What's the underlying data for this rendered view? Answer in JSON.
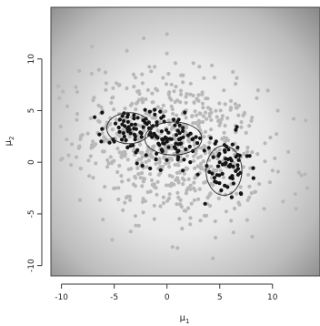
{
  "chart_data": {
    "type": "scatter",
    "title": "",
    "xlabel": "μ",
    "xlabel_sub": "1",
    "ylabel": "μ",
    "ylabel_sub": "2",
    "xlim": [
      -11,
      14.5
    ],
    "ylim": [
      -11,
      15
    ],
    "xticks": [
      -10,
      -5,
      0,
      5,
      10
    ],
    "yticks": [
      -10,
      -5,
      0,
      5,
      10
    ],
    "xtick_labels": [
      "-10",
      "-5",
      "0",
      "5",
      "10"
    ],
    "ytick_labels": [
      "-10",
      "-5",
      "0",
      "5",
      "10"
    ],
    "grid": false,
    "background": "grayscale density shading (light center, dark edges)",
    "colors": {
      "prior_points": "#b8b8b8",
      "posterior_points": "#141414",
      "contours": "#2a2a2a"
    },
    "series": [
      {
        "label_text": "",
        "role": "light-gray-samples",
        "approx_count": 700,
        "distribution": {
          "center": [
            0.5,
            1.5
          ],
          "sd": [
            4.2,
            3.6
          ],
          "corr": -0.2
        },
        "sample_points": [
          [
            -10.2,
            6.2
          ],
          [
            -8.5,
            6.8
          ],
          [
            -7.0,
            6.0
          ],
          [
            -6.5,
            4.0
          ],
          [
            -5.8,
            7.0
          ],
          [
            -4.5,
            7.5
          ],
          [
            -3.0,
            8.2
          ],
          [
            -1.5,
            8.8
          ],
          [
            -7.1,
            11.2
          ],
          [
            -3.8,
            10.8
          ],
          [
            -2.2,
            12.0
          ],
          [
            0.0,
            12.4
          ],
          [
            0.8,
            9.6
          ],
          [
            2.5,
            9.6
          ],
          [
            4.5,
            8.2
          ],
          [
            3.0,
            6.5
          ],
          [
            6.5,
            7.6
          ],
          [
            8.5,
            6.2
          ],
          [
            10.5,
            5.0
          ],
          [
            12.0,
            4.2
          ],
          [
            8.0,
            4.0
          ],
          [
            9.8,
            2.4
          ],
          [
            11.5,
            1.0
          ],
          [
            10.0,
            -0.8
          ],
          [
            12.5,
            -1.0
          ],
          [
            13.3,
            -2.5
          ],
          [
            11.0,
            -3.8
          ],
          [
            9.2,
            -4.5
          ],
          [
            7.6,
            -5.6
          ],
          [
            6.3,
            -6.8
          ],
          [
            4.6,
            -7.3
          ],
          [
            2.2,
            -6.0
          ],
          [
            1.0,
            -8.3
          ],
          [
            -1.2,
            -5.5
          ],
          [
            -3.0,
            -5.2
          ],
          [
            -4.6,
            -3.6
          ],
          [
            -7.0,
            -1.5
          ],
          [
            -8.6,
            0.5
          ],
          [
            -9.5,
            2.2
          ],
          [
            -6.0,
            2.0
          ],
          [
            -4.0,
            1.0
          ],
          [
            -2.5,
            -1.5
          ],
          [
            -1.0,
            3.5
          ],
          [
            1.5,
            3.0
          ],
          [
            3.5,
            1.5
          ],
          [
            2.0,
            -2.5
          ],
          [
            5.5,
            2.0
          ],
          [
            7.0,
            0.5
          ],
          [
            -5.2,
            -7.5
          ],
          [
            -2.8,
            5.8
          ],
          [
            4.2,
            4.8
          ],
          [
            0.2,
            -3.5
          ]
        ]
      },
      {
        "label_text": "",
        "role": "dark-samples",
        "approx_count": 190,
        "clusters": [
          {
            "center": [
              -3.5,
              3.0
            ],
            "sd": [
              1.4,
              1.2
            ],
            "count": 60
          },
          {
            "center": [
              0.5,
              2.2
            ],
            "sd": [
              1.6,
              1.2
            ],
            "count": 70
          },
          {
            "center": [
              5.5,
              -0.5
            ],
            "sd": [
              1.2,
              1.6
            ],
            "count": 60
          }
        ],
        "sample_points": [
          [
            -4.0,
            3.5
          ],
          [
            -3.0,
            2.5
          ],
          [
            -5.0,
            2.0
          ],
          [
            -2.0,
            4.2
          ],
          [
            0.0,
            2.0
          ],
          [
            1.0,
            1.0
          ],
          [
            -0.5,
            3.0
          ],
          [
            2.0,
            2.6
          ],
          [
            1.5,
            -0.8
          ],
          [
            5.0,
            0.0
          ],
          [
            6.0,
            -1.5
          ],
          [
            5.5,
            1.0
          ],
          [
            4.5,
            -1.5
          ],
          [
            6.8,
            0.2
          ],
          [
            7.0,
            -3.0
          ]
        ]
      }
    ],
    "contours": [
      {
        "center": [
          -3.6,
          3.3
        ],
        "radii": [
          2.1,
          1.5
        ]
      },
      {
        "center": [
          0.6,
          2.3
        ],
        "radii": [
          2.7,
          1.6
        ]
      },
      {
        "center": [
          5.4,
          -0.8
        ],
        "radii": [
          1.7,
          2.4
        ]
      }
    ]
  }
}
